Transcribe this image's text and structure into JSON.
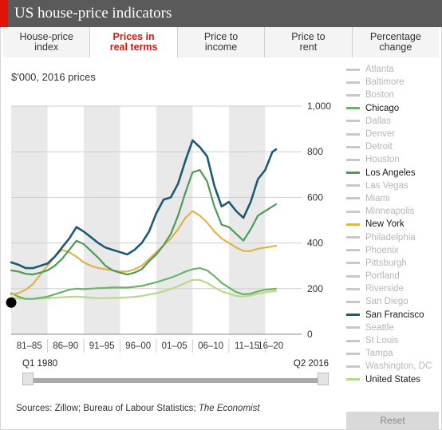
{
  "title": "US house-price indicators",
  "tabs": [
    {
      "label": "House-price\nindex",
      "active": false
    },
    {
      "label": "Prices in\nreal terms",
      "active": true
    },
    {
      "label": "Price to\nincome",
      "active": false
    },
    {
      "label": "Price to\nrent",
      "active": false
    },
    {
      "label": "Percentage\nchange",
      "active": false
    }
  ],
  "subtitle": "$'000, 2016 prices",
  "legend": [
    {
      "name": "Atlanta",
      "on": false
    },
    {
      "name": "Baltimore",
      "on": false
    },
    {
      "name": "Boston",
      "on": false
    },
    {
      "name": "Chicago",
      "on": true,
      "color": "#6cb36a"
    },
    {
      "name": "Dallas",
      "on": false
    },
    {
      "name": "Denver",
      "on": false
    },
    {
      "name": "Detroit",
      "on": false
    },
    {
      "name": "Houston",
      "on": false
    },
    {
      "name": "Los Angeles",
      "on": true,
      "color": "#4e9a5a"
    },
    {
      "name": "Las Vegas",
      "on": false
    },
    {
      "name": "Miami",
      "on": false
    },
    {
      "name": "Minneapolis",
      "on": false
    },
    {
      "name": "New York",
      "on": true,
      "color": "#e0b44a"
    },
    {
      "name": "Philadelphia",
      "on": false
    },
    {
      "name": "Phoenix",
      "on": false
    },
    {
      "name": "Pittsburgh",
      "on": false
    },
    {
      "name": "Portland",
      "on": false
    },
    {
      "name": "Riverside",
      "on": false
    },
    {
      "name": "San Diego",
      "on": false
    },
    {
      "name": "San Francisco",
      "on": true,
      "color": "#1e5a73"
    },
    {
      "name": "Seattle",
      "on": false
    },
    {
      "name": "St Louis",
      "on": false
    },
    {
      "name": "Tampa",
      "on": false
    },
    {
      "name": "Washington, DC",
      "on": false
    },
    {
      "name": "United States",
      "on": true,
      "color": "#b9d98a"
    }
  ],
  "slider": {
    "start_label": "Q1 1980",
    "end_label": "Q2 2016"
  },
  "sources": {
    "text": "Sources: Zillow; Bureau of Labour Statistics; ",
    "econ": "The Economist"
  },
  "reset_label": "Reset",
  "chart_data": {
    "type": "line",
    "ylim": [
      0,
      1000
    ],
    "xlim": [
      1980,
      2016.5
    ],
    "yticks": [
      0,
      200,
      400,
      600,
      800,
      1000
    ],
    "ytick_labels": [
      "0",
      "200",
      "400",
      "600",
      "800",
      "1,000"
    ],
    "period_bands": [
      {
        "label": "81–85",
        "start": 1980,
        "end": 1985
      },
      {
        "label": "86–90",
        "start": 1985,
        "end": 1990
      },
      {
        "label": "91–95",
        "start": 1990,
        "end": 1995
      },
      {
        "label": "96–00",
        "start": 1995,
        "end": 2000
      },
      {
        "label": "01–05",
        "start": 2000,
        "end": 2005
      },
      {
        "label": "06–10",
        "start": 2005,
        "end": 2010
      },
      {
        "label": "11–15",
        "start": 2010,
        "end": 2015
      },
      {
        "label": "16–20",
        "start": 2015,
        "end": 2016.5
      }
    ],
    "x": [
      1980,
      1981,
      1982,
      1983,
      1984,
      1985,
      1986,
      1987,
      1988,
      1989,
      1990,
      1991,
      1992,
      1993,
      1994,
      1995,
      1996,
      1997,
      1998,
      1999,
      2000,
      2001,
      2002,
      2003,
      2004,
      2005,
      2006,
      2007,
      2008,
      2009,
      2010,
      2011,
      2012,
      2013,
      2014,
      2015,
      2016,
      2016.5
    ],
    "series": [
      {
        "name": "San Francisco",
        "color": "#1e5a73",
        "values": [
          315,
          305,
          290,
          290,
          300,
          310,
          340,
          380,
          420,
          470,
          450,
          425,
          400,
          380,
          370,
          360,
          350,
          370,
          400,
          450,
          530,
          590,
          600,
          660,
          760,
          850,
          820,
          780,
          650,
          560,
          580,
          540,
          510,
          580,
          680,
          720,
          800,
          810
        ]
      },
      {
        "name": "Los Angeles",
        "color": "#4e9a5a",
        "values": [
          280,
          275,
          265,
          262,
          270,
          280,
          300,
          330,
          370,
          410,
          395,
          365,
          335,
          300,
          280,
          270,
          262,
          270,
          285,
          320,
          350,
          390,
          440,
          520,
          620,
          710,
          720,
          670,
          560,
          480,
          470,
          440,
          410,
          460,
          520,
          540,
          560,
          570
        ]
      },
      {
        "name": "New York",
        "color": "#e0b44a",
        "values": [
          175,
          180,
          195,
          220,
          260,
          300,
          340,
          370,
          360,
          340,
          315,
          300,
          290,
          285,
          280,
          275,
          275,
          285,
          300,
          330,
          360,
          390,
          420,
          460,
          510,
          540,
          520,
          490,
          450,
          420,
          400,
          380,
          365,
          365,
          375,
          380,
          385,
          388
        ]
      },
      {
        "name": "Chicago",
        "color": "#6cb36a",
        "values": [
          180,
          165,
          155,
          155,
          160,
          165,
          175,
          185,
          195,
          200,
          198,
          200,
          202,
          203,
          205,
          205,
          205,
          208,
          212,
          220,
          228,
          238,
          248,
          260,
          275,
          285,
          290,
          280,
          255,
          225,
          205,
          185,
          175,
          178,
          188,
          195,
          198,
          200
        ]
      },
      {
        "name": "United States",
        "color": "#b9d98a",
        "values": [
          160,
          157,
          155,
          155,
          156,
          158,
          160,
          162,
          164,
          165,
          163,
          160,
          158,
          158,
          159,
          160,
          162,
          164,
          168,
          174,
          180,
          188,
          198,
          210,
          225,
          238,
          238,
          225,
          205,
          188,
          178,
          168,
          165,
          170,
          178,
          184,
          188,
          190
        ]
      }
    ]
  }
}
